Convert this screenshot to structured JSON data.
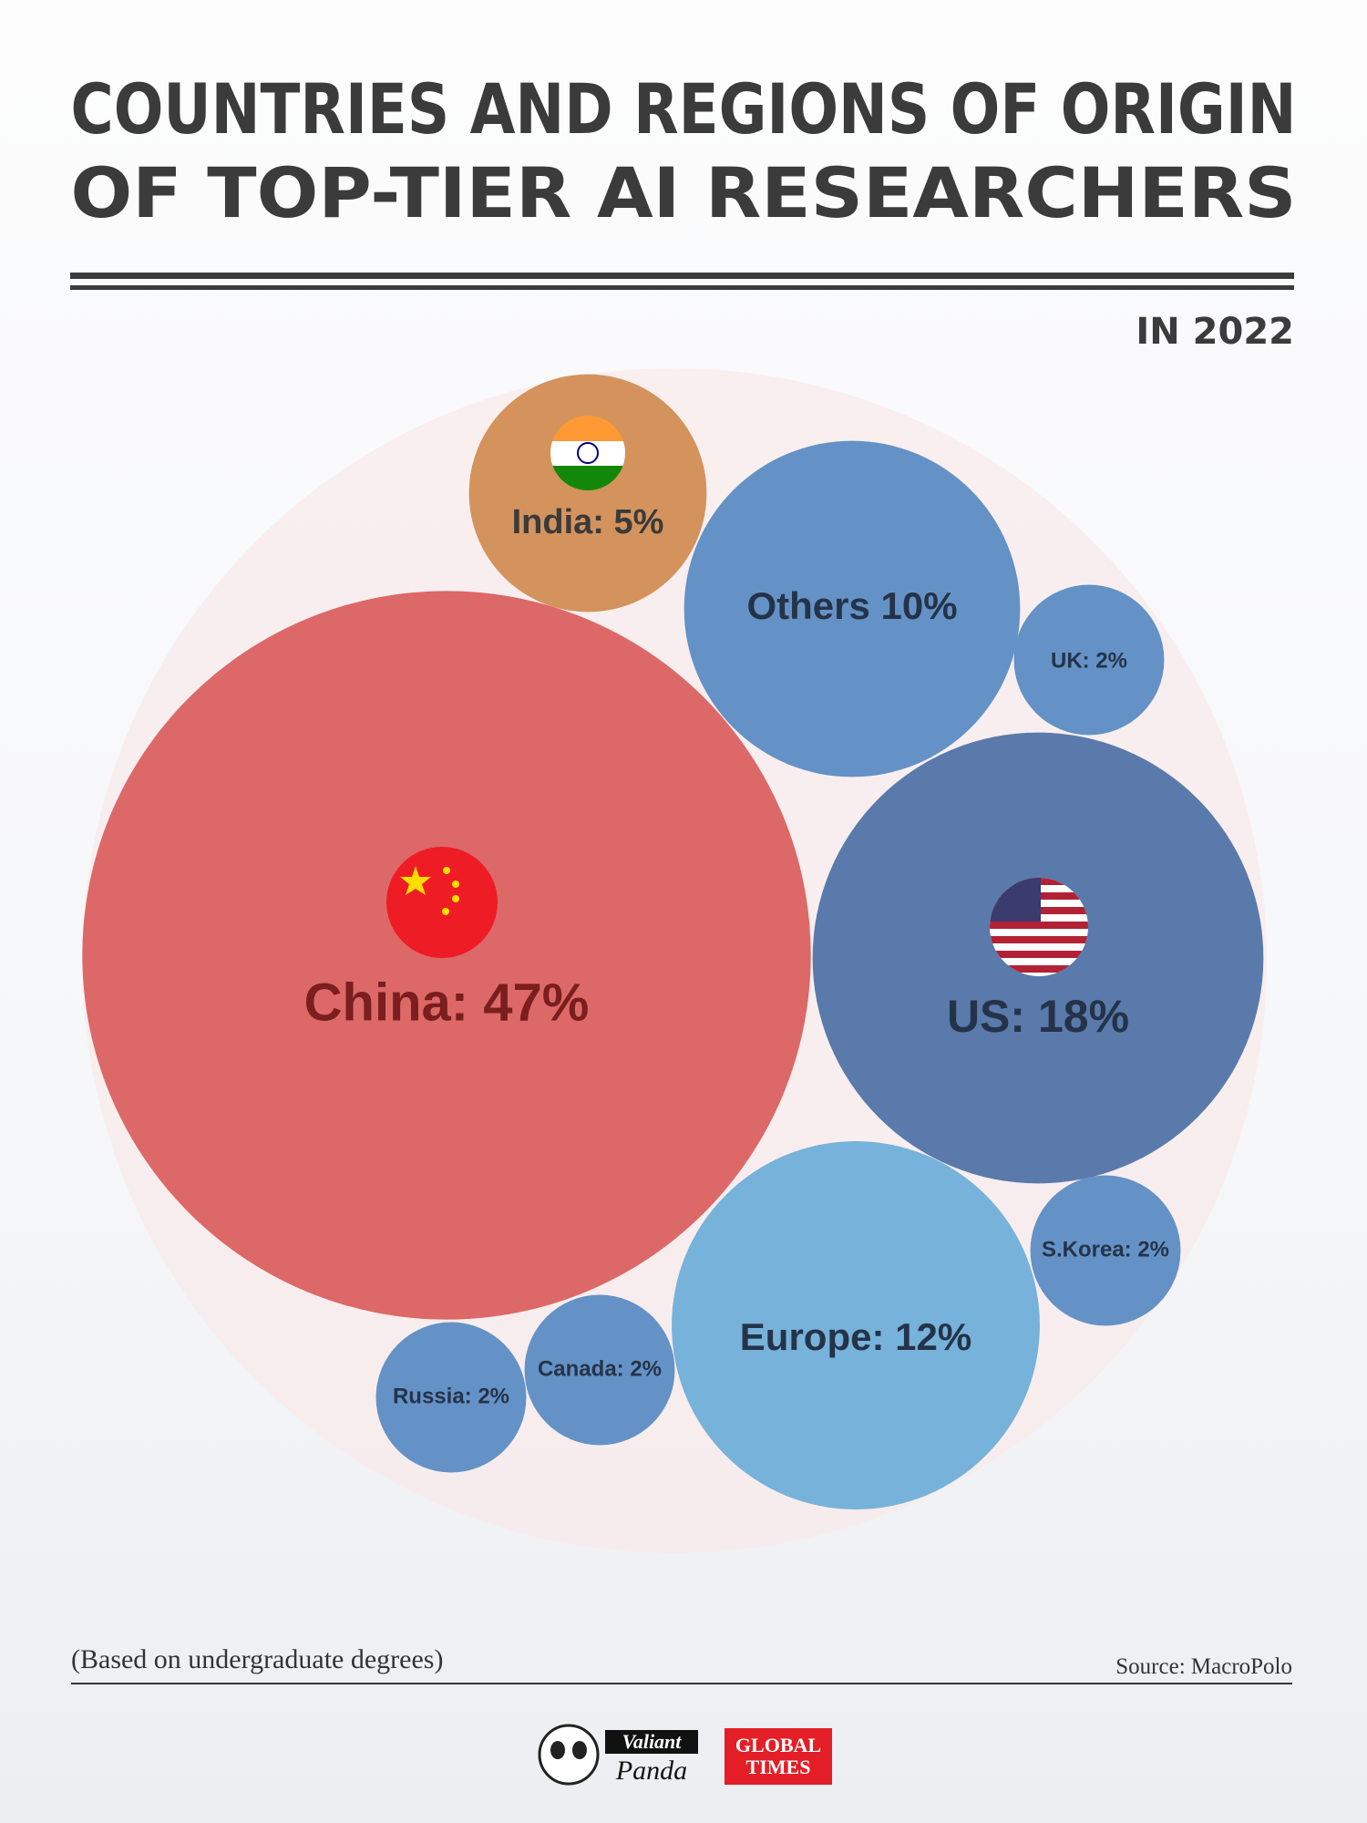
{
  "header": {
    "title_lines": [
      "COUNTRIES AND REGIONS OF ORIGIN",
      "OF TOP-TIER AI RESEARCHERS"
    ],
    "subtitle": "IN 2022"
  },
  "chart_data": {
    "type": "bubble",
    "values": [
      47,
      18,
      12,
      10,
      5,
      2,
      2,
      2,
      2
    ],
    "value_labels": [
      "China: 47%",
      "US: 18%",
      "Europe: 12%",
      "Others 10%",
      "India: 5%",
      "UK: 2%",
      "S.Korea: 2%",
      "Canada: 2%",
      "Russia: 2%"
    ],
    "colors": [
      "#dd6868",
      "#5a7aab",
      "#77b2da",
      "#6492c6",
      "#d4935c",
      "#6492c6",
      "#6492c6",
      "#6492c6",
      "#6492c6"
    ]
  },
  "footer": {
    "note": "(Based on undergraduate degrees)",
    "source": "Source:  MacroPolo",
    "logos": {
      "valiant": "Valiant",
      "panda": "Panda",
      "global": "GLOBAL",
      "times": "TIMES"
    }
  }
}
